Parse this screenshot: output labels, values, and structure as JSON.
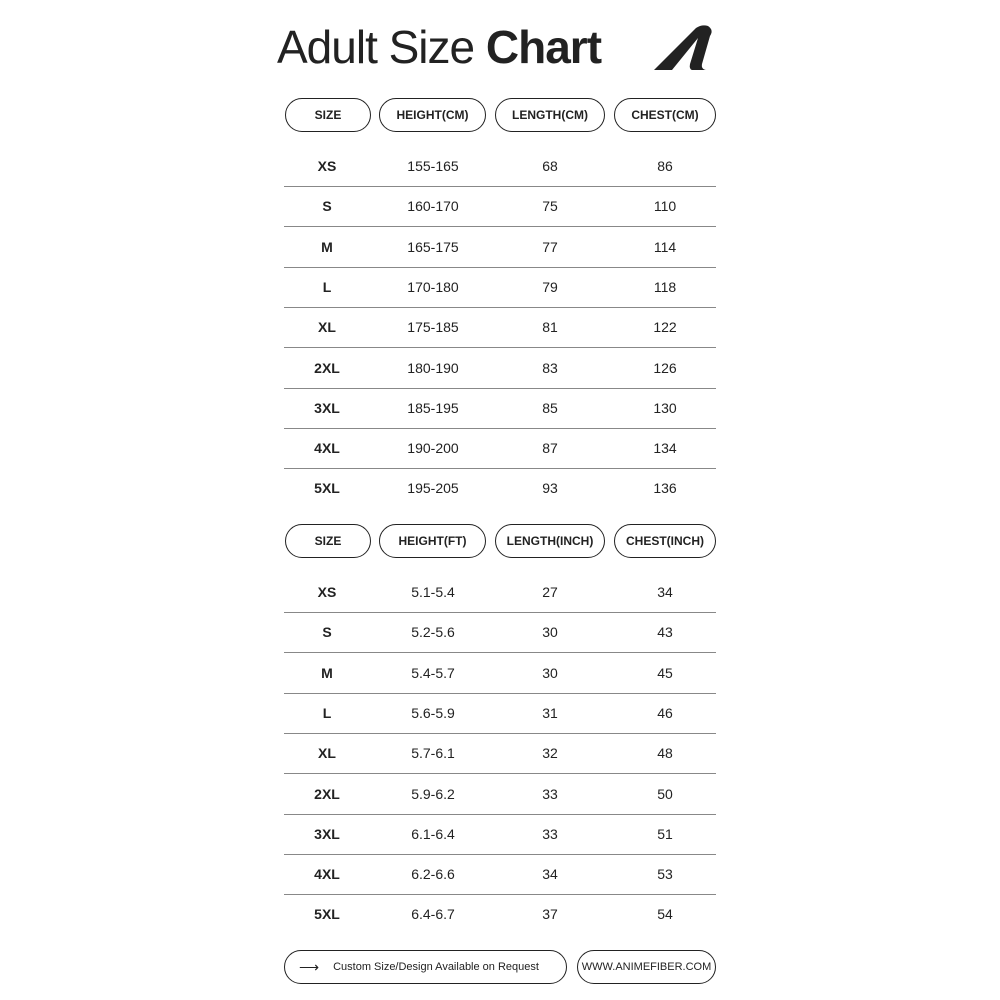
{
  "title": {
    "light": "Adult Size ",
    "bold": "Chart"
  },
  "logo_icon": "stylized-A-logo",
  "tables": [
    {
      "headers": [
        "SIZE",
        "HEIGHT(CM)",
        "LENGTH(CM)",
        "CHEST(CM)"
      ],
      "rows": [
        [
          "XS",
          "155-165",
          "68",
          "86"
        ],
        [
          "S",
          "160-170",
          "75",
          "110"
        ],
        [
          "M",
          "165-175",
          "77",
          "114"
        ],
        [
          "L",
          "170-180",
          "79",
          "118"
        ],
        [
          "XL",
          "175-185",
          "81",
          "122"
        ],
        [
          "2XL",
          "180-190",
          "83",
          "126"
        ],
        [
          "3XL",
          "185-195",
          "85",
          "130"
        ],
        [
          "4XL",
          "190-200",
          "87",
          "134"
        ],
        [
          "5XL",
          "195-205",
          "93",
          "136"
        ]
      ]
    },
    {
      "headers": [
        "SIZE",
        "HEIGHT(FT)",
        "LENGTH(INCH)",
        "CHEST(INCH)"
      ],
      "rows": [
        [
          "XS",
          "5.1-5.4",
          "27",
          "34"
        ],
        [
          "S",
          "5.2-5.6",
          "30",
          "43"
        ],
        [
          "M",
          "5.4-5.7",
          "30",
          "45"
        ],
        [
          "L",
          "5.6-5.9",
          "31",
          "46"
        ],
        [
          "XL",
          "5.7-6.1",
          "32",
          "48"
        ],
        [
          "2XL",
          "5.9-6.2",
          "33",
          "50"
        ],
        [
          "3XL",
          "6.1-6.4",
          "33",
          "51"
        ],
        [
          "4XL",
          "6.2-6.6",
          "34",
          "53"
        ],
        [
          "5XL",
          "6.4-6.7",
          "37",
          "54"
        ]
      ]
    }
  ],
  "footer": {
    "arrow_icon": "arrow-right",
    "custom_note": "Custom Size/Design Available on Request",
    "website": "WWW.ANIMEFIBER.COM"
  }
}
